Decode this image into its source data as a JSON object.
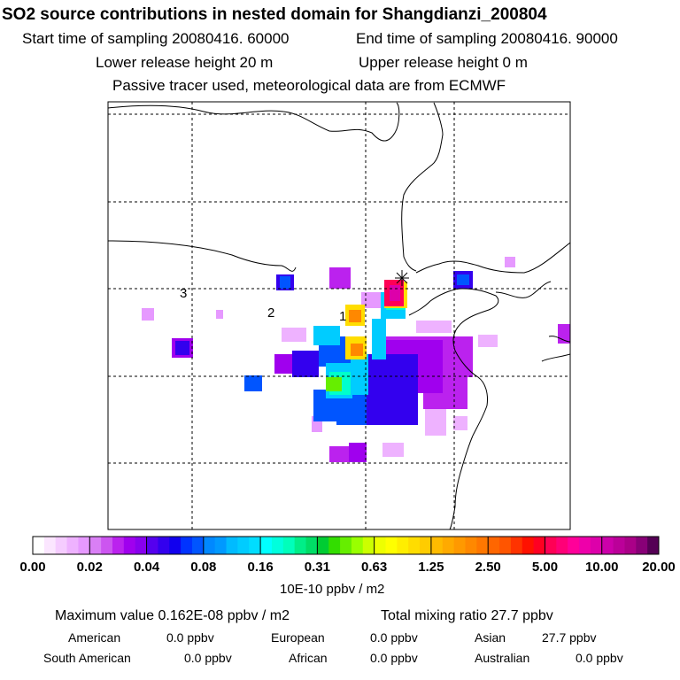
{
  "header": {
    "title": "SO2 source contributions in nested domain for Shangdianzi_200804",
    "start_time": "Start time of sampling 20080416. 60000",
    "end_time": "End time of sampling 20080416. 90000",
    "lower_release": "Lower release height   20 m",
    "upper_release": "Upper release height    0 m",
    "tracer_note": "Passive tracer used, meteorological data are from ECMWF"
  },
  "map": {
    "site_labels": [
      "1",
      "2",
      "3"
    ],
    "site_marker": "cross-star-icon",
    "coastline_color": "#000000",
    "grid_color": "#000000"
  },
  "legend": {
    "tick_labels": [
      "0.00",
      "0.02",
      "0.04",
      "0.08",
      "0.16",
      "0.31",
      "0.63",
      "1.25",
      "2.50",
      "5.00",
      "10.00",
      "20.00"
    ],
    "colors": [
      [
        "#ffffff",
        "#fbe6ff",
        "#f5ccff",
        "#eeb2ff",
        "#e699ff"
      ],
      [
        "#d97ff5",
        "#cc55f0",
        "#bb22ee",
        "#a000ee",
        "#8800ee"
      ],
      [
        "#5500ee",
        "#3300ee",
        "#1100ee",
        "#0033ff",
        "#0055ff"
      ],
      [
        "#0088ff",
        "#0099ff",
        "#00bbff",
        "#00ccff",
        "#00ddff"
      ],
      [
        "#00ffff",
        "#00ffdd",
        "#00ffbb",
        "#00ee88",
        "#00dd66"
      ],
      [
        "#00cc33",
        "#33dd00",
        "#66ee00",
        "#99ff00",
        "#ccff00"
      ],
      [
        "#eeff00",
        "#ffff00",
        "#ffee00",
        "#ffdd00",
        "#ffcc00"
      ],
      [
        "#ffbb00",
        "#ffaa00",
        "#ff9900",
        "#ff8800",
        "#ff7700"
      ],
      [
        "#ff6600",
        "#ff5500",
        "#ff3300",
        "#ff1100",
        "#ff0022"
      ],
      [
        "#ff0055",
        "#ff0077",
        "#ff0099",
        "#ee00aa",
        "#dd00aa"
      ],
      [
        "#cc00aa",
        "#bb0099",
        "#aa0088",
        "#880077",
        "#550055"
      ]
    ],
    "units": "10E-10 ppbv / m2"
  },
  "summary": {
    "maximum": "Maximum value  0.162E-08 ppbv / m2",
    "total": "Total mixing ratio       27.7 ppbv",
    "regions": [
      {
        "name": "American",
        "value": "0.0 ppbv"
      },
      {
        "name": "European",
        "value": "0.0 ppbv"
      },
      {
        "name": "Asian",
        "value": "27.7 ppbv"
      },
      {
        "name": "South American",
        "value": "0.0 ppbv"
      },
      {
        "name": "African",
        "value": "0.0 ppbv"
      },
      {
        "name": "Australian",
        "value": "0.0 ppbv"
      }
    ]
  }
}
